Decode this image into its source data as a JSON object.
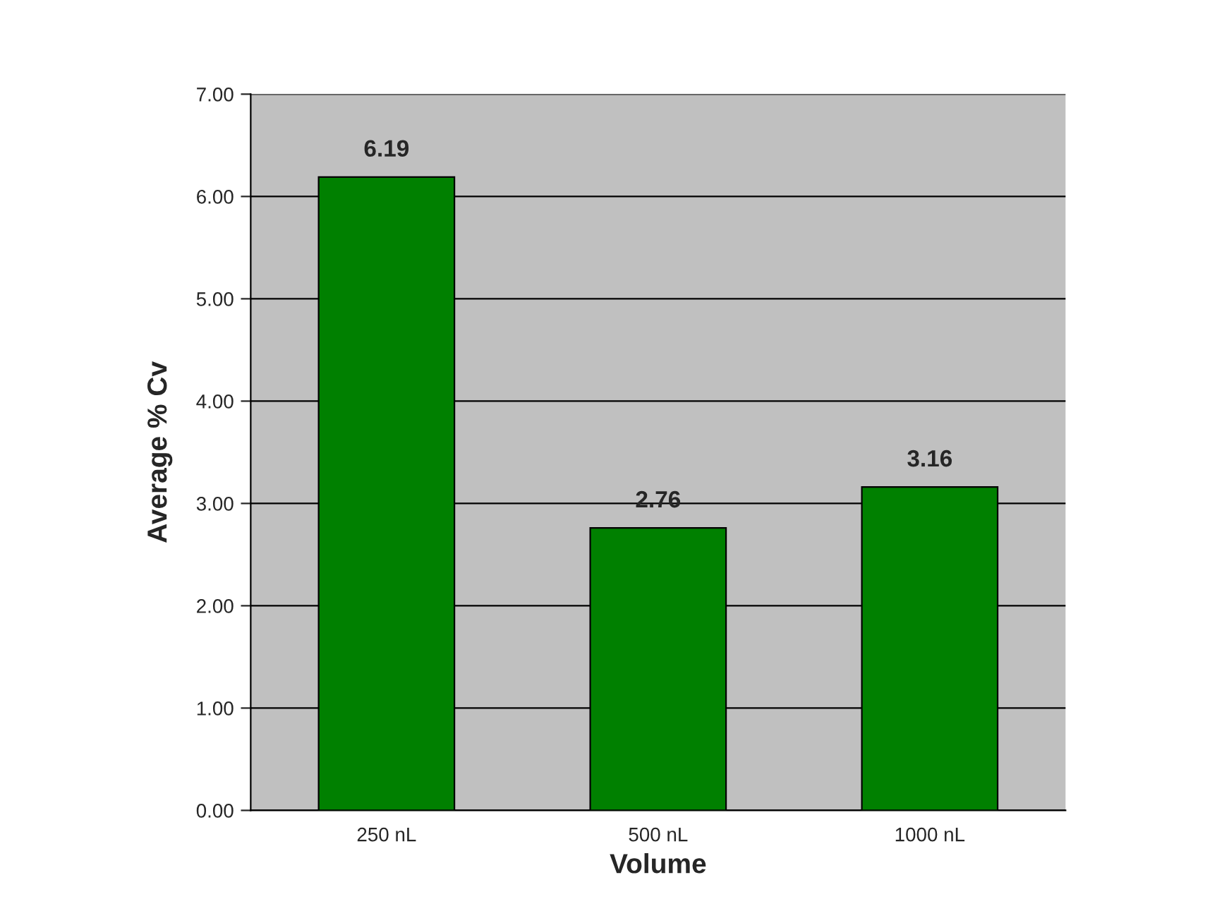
{
  "chart_data": {
    "type": "bar",
    "xlabel": "Volume",
    "ylabel": "Average % Cv",
    "categories": [
      "250 nL",
      "500 nL",
      "1000 nL"
    ],
    "values": [
      6.19,
      2.76,
      3.16
    ],
    "color": "#008000",
    "data_labels": true,
    "ylim": [
      0,
      7
    ],
    "yticks": [
      {
        "value": 0,
        "label": "0.00"
      },
      {
        "value": 1,
        "label": "1.00"
      },
      {
        "value": 2,
        "label": "2.00"
      },
      {
        "value": 3,
        "label": "3.00"
      },
      {
        "value": 4,
        "label": "4.00"
      },
      {
        "value": 5,
        "label": "5.00"
      },
      {
        "value": 6,
        "label": "6.00"
      },
      {
        "value": 7,
        "label": "7.00"
      }
    ],
    "grid": "y"
  }
}
